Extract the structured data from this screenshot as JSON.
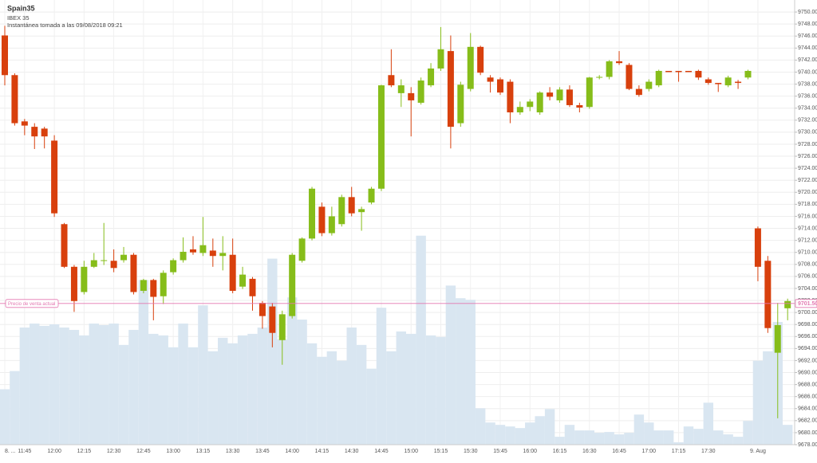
{
  "chart_data": {
    "type": "candlestick",
    "title": "Spain35",
    "subtitle": "IBEX 35",
    "annotation": "Instantánea tomada a las 09/08/2018 09:21",
    "categories": [
      "8. ...",
      null,
      "11:45",
      null,
      null,
      "12:00",
      null,
      null,
      "12:15",
      null,
      null,
      "12:30",
      null,
      null,
      "12:45",
      null,
      null,
      "13:00",
      null,
      null,
      "13:15",
      null,
      null,
      "13:30",
      null,
      null,
      "13:45",
      null,
      null,
      "14:00",
      null,
      null,
      "14:15",
      null,
      null,
      "14:30",
      null,
      null,
      "14:45",
      null,
      null,
      "15:00",
      null,
      null,
      "15:15",
      null,
      null,
      "15:30",
      null,
      null,
      "15:45",
      null,
      null,
      "16:00",
      null,
      null,
      "16:15",
      null,
      null,
      "16:30",
      null,
      null,
      "16:45",
      null,
      null,
      "17:00",
      null,
      null,
      "17:15",
      null,
      null,
      "17:30",
      null,
      null,
      null,
      null,
      "9. Aug",
      null,
      null,
      null
    ],
    "open": [
      9746.1,
      9739.5,
      9731.8,
      9730.9,
      9730.6,
      9728.6,
      9714.7,
      9707.6,
      9703.4,
      9707.6,
      9708.6,
      9708.6,
      9708.7,
      9709.6,
      9703.6,
      9705.4,
      9702.7,
      9706.7,
      9708.7,
      9710.5,
      9709.9,
      9710.3,
      9709.4,
      9709.6,
      9704.3,
      9705.6,
      9701.6,
      9701.0,
      9695.4,
      9699.4,
      9708.6,
      9712.3,
      9717.6,
      9713.2,
      9714.7,
      9719.2,
      9716.7,
      9718.3,
      9720.6,
      9739.5,
      9736.5,
      9736.5,
      9734.9,
      9737.8,
      9740.6,
      9743.5,
      9731.5,
      9737.2,
      9744.2,
      9739.1,
      9738.8,
      9738.4,
      9733.3,
      9734.2,
      9733.3,
      9736.6,
      9735.3,
      9737.1,
      9734.5,
      9734.2,
      9739.1,
      9739.2,
      9741.8,
      9741.2,
      9737.2,
      9737.2,
      9737.8,
      9740.2,
      9740.2,
      9740.2,
      9740.2,
      9738.8,
      9738.2,
      9737.8,
      9738.4,
      9739.1,
      9714.0,
      9708.6,
      9693.3,
      9700.7
    ],
    "high": [
      9747.7,
      9739.8,
      9732.2,
      9731.5,
      9730.9,
      9729.5,
      9714.9,
      9707.9,
      9708.6,
      9709.9,
      9714.9,
      9710.5,
      9710.9,
      9709.9,
      9705.6,
      9705.6,
      9707.0,
      9709.0,
      9712.5,
      9712.7,
      9715.9,
      9712.3,
      9712.7,
      9712.3,
      9707.6,
      9705.9,
      9701.9,
      9701.6,
      9700.3,
      9709.9,
      9712.5,
      9720.9,
      9718.3,
      9717.6,
      9719.6,
      9720.9,
      9717.6,
      9720.9,
      9737.9,
      9743.8,
      9738.8,
      9737.5,
      9739.1,
      9741.5,
      9747.5,
      9746.1,
      9738.4,
      9746.5,
      9744.4,
      9739.5,
      9739.1,
      9738.8,
      9735.1,
      9735.5,
      9736.8,
      9737.5,
      9737.5,
      9737.8,
      9734.9,
      9739.2,
      9739.5,
      9742.0,
      9743.5,
      9741.5,
      9737.8,
      9738.8,
      9740.4,
      9740.2,
      9740.2,
      9740.2,
      9740.4,
      9739.1,
      9738.2,
      9739.4,
      9738.7,
      9740.4,
      9714.3,
      9709.4,
      9701.6,
      9702.3
    ],
    "low": [
      9737.8,
      9731.1,
      9729.5,
      9727.2,
      9727.3,
      9715.9,
      9707.4,
      9700.1,
      9703.0,
      9707.4,
      9707.9,
      9706.7,
      9708.3,
      9703.0,
      9703.2,
      9698.7,
      9701.4,
      9706.3,
      9708.3,
      9709.6,
      9709.4,
      9707.6,
      9707.0,
      9703.2,
      9703.9,
      9700.3,
      9697.3,
      9694.2,
      9691.3,
      9699.0,
      9708.3,
      9712.0,
      9712.7,
      9712.8,
      9714.3,
      9716.0,
      9713.6,
      9718.0,
      9720.2,
      9737.5,
      9734.2,
      9729.3,
      9734.6,
      9737.5,
      9740.2,
      9727.3,
      9730.9,
      9736.8,
      9739.5,
      9736.6,
      9736.2,
      9731.5,
      9732.9,
      9733.5,
      9732.9,
      9735.3,
      9734.9,
      9734.2,
      9733.3,
      9733.9,
      9738.8,
      9738.8,
      9741.2,
      9737.0,
      9735.9,
      9736.8,
      9737.5,
      9740.0,
      9738.4,
      9740.0,
      9738.7,
      9737.9,
      9736.7,
      9737.5,
      9737.2,
      9738.8,
      9705.2,
      9696.6,
      9682.4,
      9698.7
    ],
    "close": [
      9739.5,
      9731.5,
      9731.1,
      9729.3,
      9729.3,
      9716.5,
      9707.6,
      9701.9,
      9707.6,
      9708.7,
      9708.7,
      9707.4,
      9709.6,
      9703.4,
      9705.4,
      9702.6,
      9706.6,
      9708.7,
      9710.1,
      9710.0,
      9711.2,
      9709.4,
      9709.9,
      9703.6,
      9706.3,
      9702.7,
      9699.4,
      9696.6,
      9699.7,
      9709.6,
      9712.3,
      9720.6,
      9713.2,
      9716.0,
      9719.2,
      9716.5,
      9717.2,
      9720.6,
      9737.8,
      9737.8,
      9737.8,
      9735.3,
      9738.6,
      9740.6,
      9743.8,
      9730.9,
      9737.9,
      9744.2,
      9739.9,
      9738.4,
      9736.6,
      9733.3,
      9734.2,
      9735.1,
      9736.6,
      9735.9,
      9737.1,
      9734.5,
      9734.1,
      9739.1,
      9739.2,
      9741.8,
      9741.5,
      9737.2,
      9736.2,
      9738.4,
      9740.2,
      9740.0,
      9740.0,
      9740.0,
      9739.1,
      9738.2,
      9738.0,
      9739.1,
      9738.2,
      9740.2,
      9707.6,
      9697.4,
      9697.9,
      9701.9
    ],
    "volume": [
      70,
      93,
      148,
      153,
      150,
      152,
      148,
      145,
      138,
      153,
      151,
      153,
      126,
      145,
      208,
      140,
      138,
      123,
      153,
      123,
      176,
      118,
      135,
      128,
      138,
      140,
      148,
      235,
      133,
      186,
      158,
      128,
      111,
      118,
      106,
      148,
      126,
      96,
      173,
      118,
      143,
      140,
      264,
      138,
      136,
      201,
      185,
      183,
      46,
      28,
      25,
      23,
      21,
      28,
      36,
      45,
      10,
      25,
      18,
      18,
      15,
      16,
      13,
      15,
      38,
      28,
      18,
      18,
      3,
      23,
      20,
      53,
      18,
      13,
      10,
      30,
      106,
      118,
      155,
      25
    ],
    "up_color": "#86bd1a",
    "down_color": "#d8400d",
    "volume_color": "#d9e6f1",
    "current_price": {
      "value": 9701.5,
      "label": "9701.50"
    },
    "current_price_label": "Precio de venta actual",
    "current_price_color": "#e377b0",
    "ylim": [
      9678,
      9752
    ],
    "yticks": [
      {
        "value": 9678,
        "label": "9678.00"
      },
      {
        "value": 9680,
        "label": "9680.00"
      },
      {
        "value": 9682,
        "label": "9682.00"
      },
      {
        "value": 9684,
        "label": "9684.00"
      },
      {
        "value": 9686,
        "label": "9686.00"
      },
      {
        "value": 9688,
        "label": "9688.00"
      },
      {
        "value": 9690,
        "label": "9690.00"
      },
      {
        "value": 9692,
        "label": "9692.00"
      },
      {
        "value": 9694,
        "label": "9694.00"
      },
      {
        "value": 9696,
        "label": "9696.00"
      },
      {
        "value": 9698,
        "label": "9698.00"
      },
      {
        "value": 9700,
        "label": "9700.00"
      },
      {
        "value": 9702,
        "label": "9702.00"
      },
      {
        "value": 9704,
        "label": "9704.00"
      },
      {
        "value": 9706,
        "label": "9706.00"
      },
      {
        "value": 9708,
        "label": "9708.00"
      },
      {
        "value": 9710,
        "label": "9710.00"
      },
      {
        "value": 9712,
        "label": "9712.00"
      },
      {
        "value": 9714,
        "label": "9714.00"
      },
      {
        "value": 9716,
        "label": "9716.00"
      },
      {
        "value": 9718,
        "label": "9718.00"
      },
      {
        "value": 9720,
        "label": "9720.00"
      },
      {
        "value": 9722,
        "label": "9722.00"
      },
      {
        "value": 9724,
        "label": "9724.00"
      },
      {
        "value": 9726,
        "label": "9726.00"
      },
      {
        "value": 9728,
        "label": "9728.00"
      },
      {
        "value": 9730,
        "label": "9730.00"
      },
      {
        "value": 9732,
        "label": "9732.00"
      },
      {
        "value": 9734,
        "label": "9734.00"
      },
      {
        "value": 9736,
        "label": "9736.00"
      },
      {
        "value": 9738,
        "label": "9738.00"
      },
      {
        "value": 9740,
        "label": "9740.00"
      },
      {
        "value": 9742,
        "label": "9742.00"
      },
      {
        "value": 9744,
        "label": "9744.00"
      },
      {
        "value": 9746,
        "label": "9746.00"
      },
      {
        "value": 9748,
        "label": "9748.00"
      },
      {
        "value": 9750,
        "label": "9750.00"
      }
    ],
    "grid": true
  }
}
